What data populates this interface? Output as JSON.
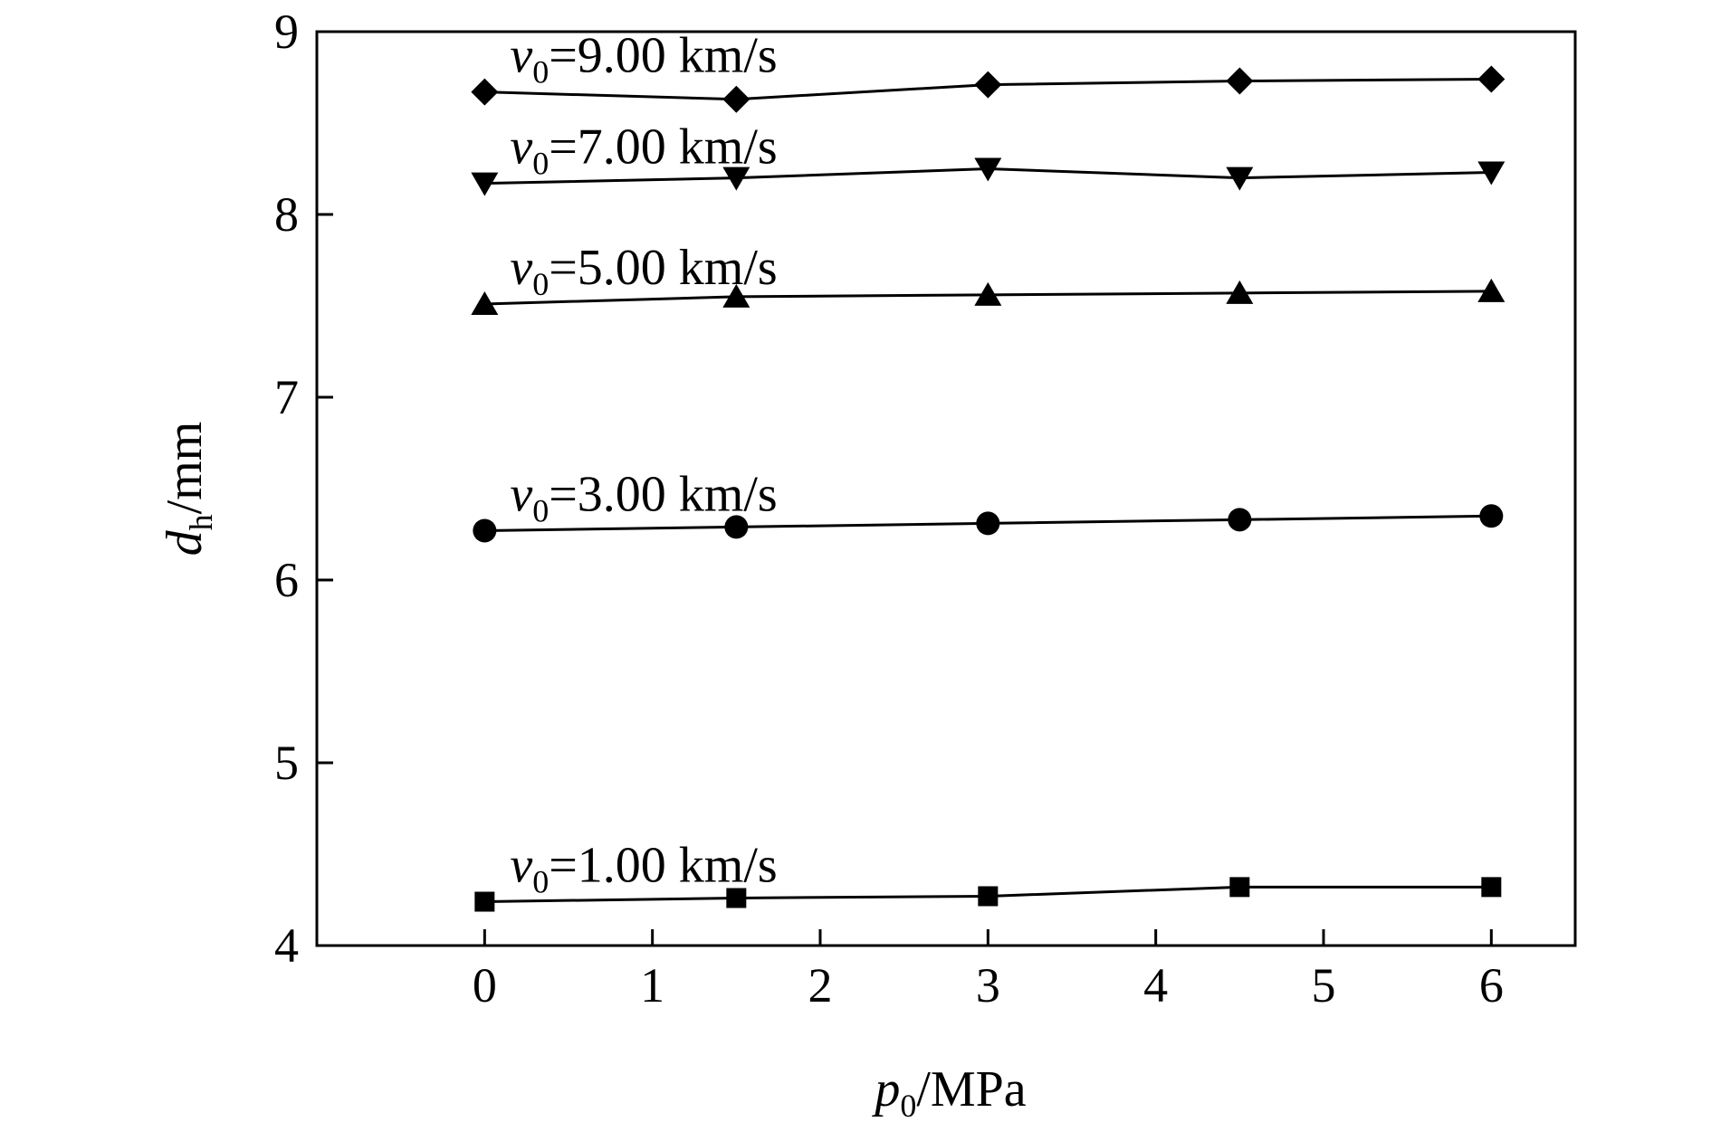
{
  "chart_data": {
    "type": "line",
    "title": "",
    "xlabel": {
      "main": "p",
      "sub": "0",
      "rest": "/MPa"
    },
    "ylabel": {
      "main": "d",
      "sub": "h",
      "rest": "/mm"
    },
    "xlim": [
      -1,
      6.5
    ],
    "ylim": [
      4,
      9
    ],
    "xticks": [
      "0",
      "1",
      "2",
      "3",
      "4",
      "5",
      "6"
    ],
    "yticks": [
      "4",
      "5",
      "6",
      "7",
      "8",
      "9"
    ],
    "x": [
      0,
      1.5,
      3,
      4.5,
      6
    ],
    "grid": false,
    "series": [
      {
        "label_main": "v",
        "label_sub": "0",
        "label_rest": "=9.00 km/s",
        "marker": "diamond",
        "values": [
          8.67,
          8.63,
          8.71,
          8.73,
          8.74
        ]
      },
      {
        "label_main": "v",
        "label_sub": "0",
        "label_rest": "=7.00 km/s",
        "marker": "triangle-down",
        "values": [
          8.17,
          8.2,
          8.25,
          8.2,
          8.23
        ]
      },
      {
        "label_main": "v",
        "label_sub": "0",
        "label_rest": "=5.00 km/s",
        "marker": "triangle-up",
        "values": [
          7.51,
          7.55,
          7.56,
          7.57,
          7.58
        ]
      },
      {
        "label_main": "v",
        "label_sub": "0",
        "label_rest": "=3.00 km/s",
        "marker": "circle",
        "values": [
          6.27,
          6.29,
          6.31,
          6.33,
          6.35
        ]
      },
      {
        "label_main": "v",
        "label_sub": "0",
        "label_rest": "=1.00 km/s",
        "marker": "square",
        "values": [
          4.24,
          4.26,
          4.27,
          4.32,
          4.32
        ]
      }
    ]
  }
}
